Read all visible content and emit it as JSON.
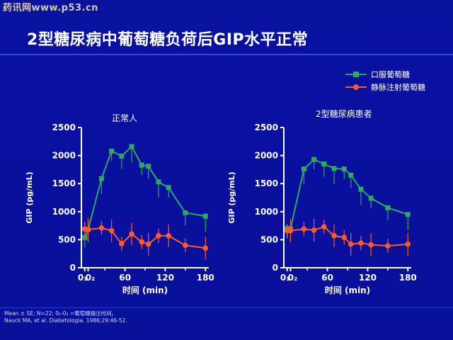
{
  "watermark": "药讯网www.p53.cn",
  "slide_title": "2型糖尿病中葡萄糖负荷后GIP水平正常",
  "legend": [
    {
      "label": "口服葡萄糖",
      "color": "#2eaa5a",
      "marker": "square"
    },
    {
      "label": "静脉注射葡萄糖",
      "color": "#ff5a2a",
      "marker": "circle"
    }
  ],
  "footnotes": [
    "Mean ± SE; N=22; 0₁-0₂ =葡萄糖输注时间。",
    "Nauck MA, et al. Diabetologia. 1986;29:46-52."
  ],
  "chart_data": [
    {
      "type": "line",
      "title": "正常人",
      "xlabel": "时间 (min)",
      "ylabel": "GIP (pg/mL)",
      "xlim": [
        -5,
        185
      ],
      "ylim": [
        0,
        2500
      ],
      "xticks": [
        "0₁",
        "0₂",
        "60",
        "120",
        "180"
      ],
      "yticks": [
        "0",
        "500",
        "1000",
        "1500",
        "2000",
        "2500"
      ],
      "series": [
        {
          "name": "口服葡萄糖",
          "color": "#2eaa5a",
          "marker": "square",
          "x": [
            0,
            5,
            25,
            40,
            55,
            70,
            85,
            95,
            110,
            125,
            150,
            180
          ],
          "y": [
            540,
            680,
            1590,
            2080,
            1990,
            2160,
            1830,
            1810,
            1530,
            1430,
            980,
            920
          ]
        },
        {
          "name": "静脉注射葡萄糖",
          "color": "#ff5a2a",
          "marker": "circle",
          "x": [
            0,
            5,
            25,
            40,
            55,
            70,
            85,
            95,
            110,
            125,
            150,
            180
          ],
          "y": [
            690,
            680,
            710,
            660,
            430,
            600,
            460,
            420,
            570,
            570,
            400,
            350
          ]
        }
      ]
    },
    {
      "type": "line",
      "title": "2型糖尿病患者",
      "xlabel": "时间 (min)",
      "ylabel": "GIP (pg/mL)",
      "xlim": [
        -5,
        185
      ],
      "ylim": [
        0,
        2500
      ],
      "xticks": [
        "0₁",
        "0₂",
        "60",
        "120",
        "180"
      ],
      "yticks": [
        "0",
        "500",
        "1000",
        "1500",
        "2000",
        "2500"
      ],
      "series": [
        {
          "name": "口服葡萄糖",
          "color": "#2eaa5a",
          "marker": "square",
          "x": [
            0,
            5,
            25,
            40,
            55,
            70,
            85,
            95,
            110,
            125,
            150,
            180
          ],
          "y": [
            700,
            700,
            1760,
            1930,
            1850,
            1770,
            1760,
            1650,
            1400,
            1240,
            1070,
            950
          ]
        },
        {
          "name": "静脉注射葡萄糖",
          "color": "#ff5a2a",
          "marker": "circle",
          "x": [
            0,
            5,
            25,
            40,
            55,
            70,
            85,
            95,
            110,
            125,
            150,
            180
          ],
          "y": [
            660,
            660,
            690,
            670,
            730,
            570,
            540,
            420,
            440,
            410,
            390,
            420
          ]
        }
      ]
    }
  ]
}
